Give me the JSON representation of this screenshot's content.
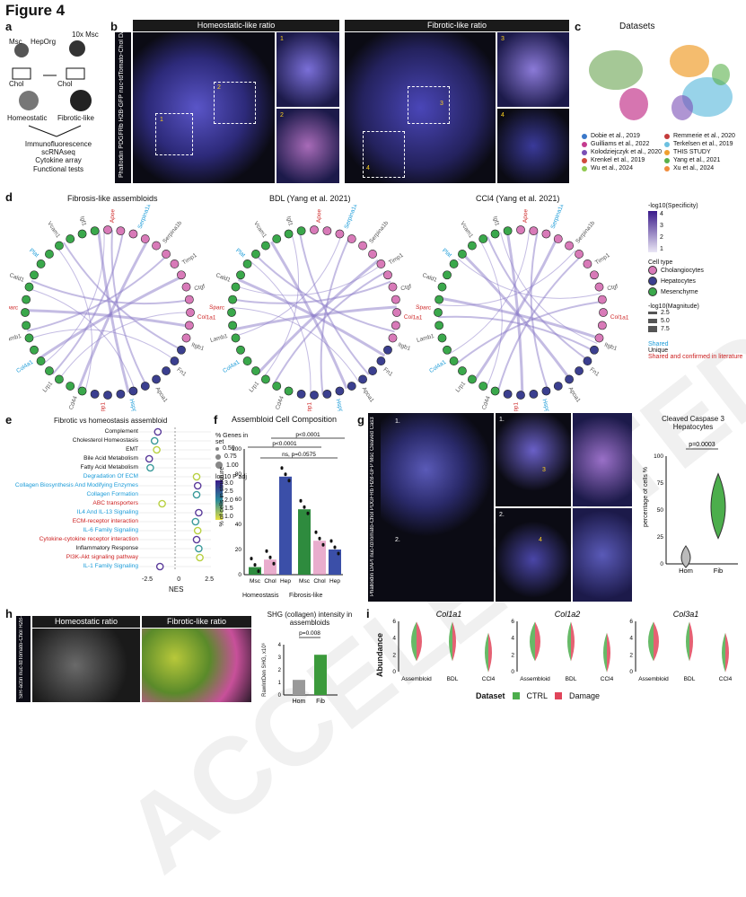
{
  "figure_title": "Figure 4",
  "panel_labels": {
    "a": "a",
    "b": "b",
    "c": "c",
    "d": "d",
    "e": "e",
    "f": "f",
    "g": "g",
    "h": "h",
    "i": "i"
  },
  "panel_a": {
    "msc": "Msc",
    "heporg": "HepOrg",
    "mult": "10x Msc",
    "chol": "Chol",
    "homeostatic": "Homeostatic",
    "fibrotic": "Fibrotic-like",
    "methods": [
      "Immunofluorescence",
      "scRNAseq",
      "Cytokine array",
      "Functional tests"
    ]
  },
  "panel_b": {
    "hdr_left": "Homeostatic-like ratio",
    "hdr_right": "Fibrotic-like ratio",
    "side_label": "Phalloidin PDGFRb H2B-GFP nuc-tdTomato-Chol DAPI",
    "inset_nums": [
      "1",
      "2",
      "1",
      "2",
      "3",
      "4",
      "3",
      "4"
    ]
  },
  "panel_c": {
    "title": "Datasets",
    "legend_left": [
      "Dobie et al., 2019",
      "Guilliams et al., 2022",
      "Kolodziejczyk et al., 2020",
      "Krenkel et al., 2019",
      "Wu et al., 2024"
    ],
    "legend_right": [
      "Remmerie et al., 2020",
      "Terkelsen et al., 2019",
      "THIS STUDY",
      "Yang et al., 2021",
      "Xu et al., 2024"
    ],
    "colors_left": [
      "#3a78c9",
      "#c43b8f",
      "#7a4fb5",
      "#d04a3c",
      "#8fc94d"
    ],
    "colors_right": [
      "#c43b3b",
      "#6cc0e0",
      "#f0a030",
      "#5ab04b",
      "#f08c3c"
    ]
  },
  "panel_d": {
    "titles": [
      "Fibrosis-like assembloids",
      "BDL (Yang et al. 2021)",
      "CCl4 (Yang et al. 2021)"
    ],
    "specificity_title": "-log10(Specificity)",
    "specificity_ticks": [
      "4",
      "3",
      "2",
      "1"
    ],
    "celltype_title": "Cell type",
    "celltypes": [
      "Cholangiocytes",
      "Hepatocytes",
      "Mesenchyme"
    ],
    "celltype_colors": [
      "#d87ab8",
      "#3b3f8f",
      "#3aa84b"
    ],
    "magnitude_title": "-log10(Magnitude)",
    "magnitude_ticks": [
      "2.5",
      "5.0",
      "7.5"
    ],
    "key_shared": "Shared",
    "key_unique": "Unique",
    "key_confirmed": "Shared and confirmed in literature",
    "genes": [
      "Apoe",
      "Serpina1a",
      "Serpina1b",
      "Timp1",
      "Ctgf",
      "Col1a1",
      "Itgb1",
      "Fn1",
      "Apoa1",
      "Hspg2",
      "Spp1",
      "Cd44",
      "Lrp1",
      "Col4a1",
      "Lamb1",
      "Sparc",
      "Cald1",
      "Plat",
      "Vcam1",
      "Igf1"
    ]
  },
  "panel_e": {
    "title": "Fibrotic vs homeostasis assembloid",
    "terms": [
      "Complement",
      "Cholesterol Homeostasis",
      "EMT",
      "Bile Acid Metabolism",
      "Fatty Acid Metabolism",
      "Degradation Of ECM",
      "Collagen Biosynthesis And Modifying Enzymes",
      "Collagen Formation",
      "ABC transporters",
      "IL4 And IL-13 Signaling",
      "ECM-receptor interaction",
      "IL-6 Family Signaling",
      "Cytokine-cytokine receptor interaction",
      "Inflammatory Response",
      "PI3K-Akt signaling pathway",
      "IL-1 Family Signaling"
    ],
    "term_colors": [
      "#111",
      "#111",
      "#111",
      "#111",
      "#111",
      "#1a9bd8",
      "#1a9bd8",
      "#1a9bd8",
      "#cc1f1f",
      "#1a9bd8",
      "#cc1f1f",
      "#1a9bd8",
      "#cc1f1f",
      "#111",
      "#cc1f1f",
      "#1a9bd8"
    ],
    "nes": [
      -1.6,
      -1.9,
      -1.7,
      -2.4,
      -2.3,
      2.0,
      2.1,
      2.0,
      -1.2,
      2.2,
      1.9,
      2.1,
      2.0,
      2.2,
      2.3,
      -1.4
    ],
    "xlabel": "NES",
    "xticks": [
      "-2.5",
      "0",
      "2.5"
    ],
    "size_title": "% Genes in set",
    "size_ticks": [
      "0.50",
      "0.75",
      "1.00"
    ],
    "color_title": "log10 P adj",
    "color_ticks": [
      "3.0",
      "2.5",
      "2.0",
      "1.5",
      "1.0"
    ]
  },
  "panel_f": {
    "title": "Assembloid Cell Composition",
    "ylabel": "% of cells in structure",
    "yticks": [
      "0",
      "20",
      "40",
      "60",
      "80",
      "100"
    ],
    "categories": [
      "Msc",
      "Chol",
      "Hep",
      "Msc",
      "Chol",
      "Hep"
    ],
    "values": [
      6,
      12,
      78,
      52,
      27,
      20
    ],
    "bar_colors": [
      "#2e8b3e",
      "#e08ab8",
      "#3b4fa8",
      "#2e8b3e",
      "#e08ab8",
      "#3b4fa8"
    ],
    "groups": [
      "Homeostasis",
      "Fibrosis-like"
    ],
    "sig": [
      "ns, p=0.0575",
      "p<0.0001",
      "p<0.0001"
    ]
  },
  "panel_g": {
    "side_label": "Phalloidin DAPI nuc-tdTomato-Chol PDGFRb H2B-GFP Msc Cleaved Cas3",
    "nums": [
      "1.",
      "2.",
      "1.",
      "2.",
      "3",
      "4"
    ],
    "violin_title": "Cleaved Caspase 3 Hepatocytes",
    "ylabel": "percentage of cells %",
    "yticks": [
      "0",
      "25",
      "50",
      "75",
      "100"
    ],
    "categories": [
      "Hom",
      "Fib"
    ],
    "medians": [
      5,
      52
    ],
    "pval": "p=0.0003"
  },
  "panel_h": {
    "hdr_left": "Homeostatic ratio",
    "hdr_right": "Fibrotic-like ratio",
    "side_label": "SiR-actin nuc-tdTomato-Chol H2B-GFP SHG (collagen)",
    "bar_title": "SHG (collagen) intensity in assembloids",
    "ylabel": "RawIntDen SHG, x10⁶",
    "yticks": [
      "0",
      "1",
      "2",
      "3",
      "4"
    ],
    "categories": [
      "Hom",
      "Fib"
    ],
    "values": [
      1.2,
      3.2
    ],
    "pval": "p=0.008"
  },
  "panel_i": {
    "genes": [
      "Col1a1",
      "Col1a2",
      "Col3a1"
    ],
    "ylabel": "Abundance",
    "yticks": [
      "0",
      "2",
      "4",
      "6"
    ],
    "xcats": [
      "Assembloid",
      "BDL",
      "CCl4"
    ],
    "legend_title": "Dataset",
    "legend": [
      "CTRL",
      "Damage"
    ],
    "legend_colors": [
      "#4cae4c",
      "#e0455a"
    ]
  }
}
